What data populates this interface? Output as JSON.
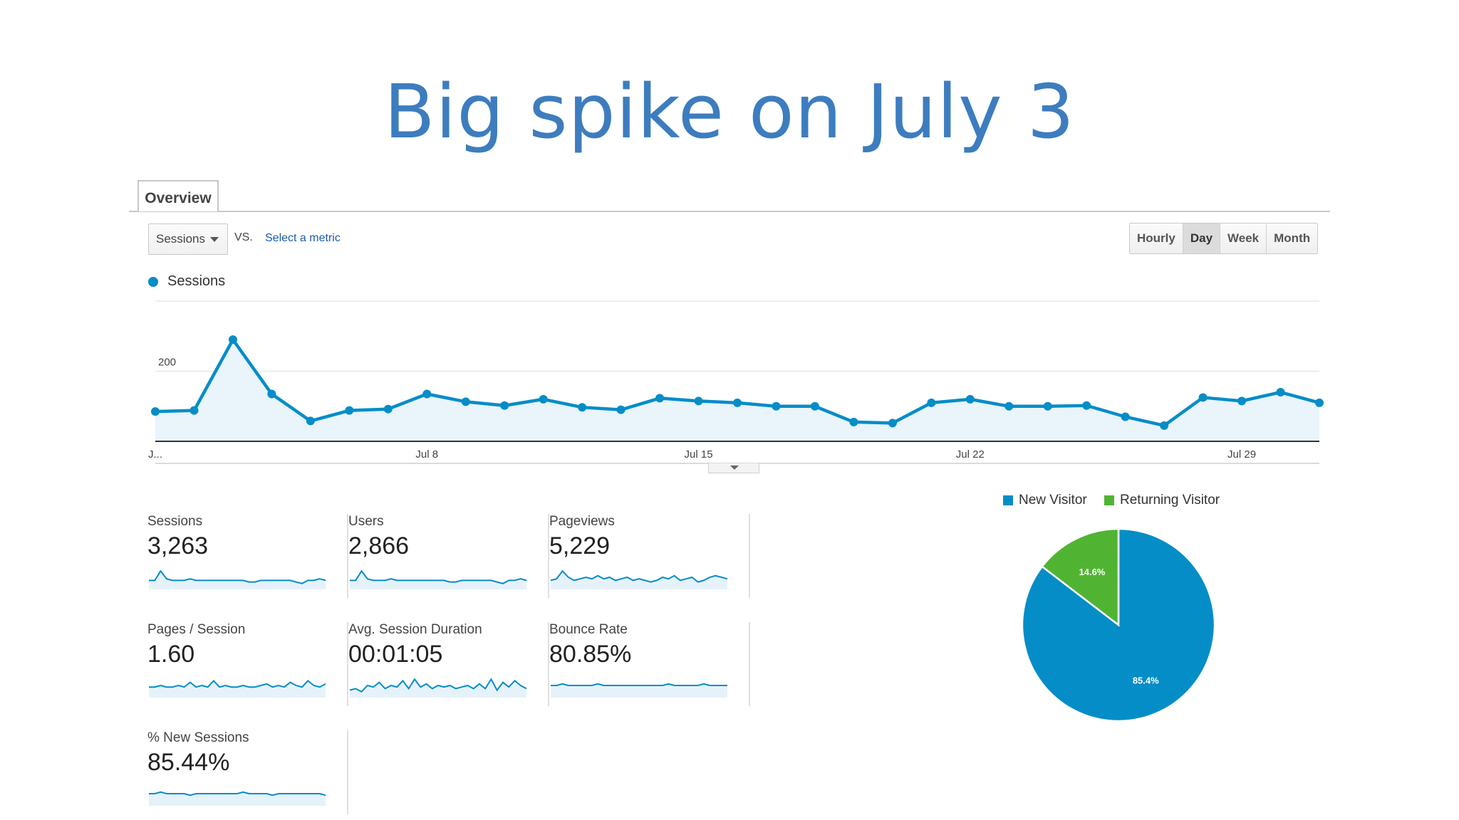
{
  "slide": {
    "title": "Big spike on July 3"
  },
  "tabs": [
    {
      "label": "Overview"
    }
  ],
  "controls": {
    "metric_select": "Sessions",
    "vs_label": "VS.",
    "select_metric_link": "Select a metric",
    "time_buttons": [
      "Hourly",
      "Day",
      "Week",
      "Month"
    ],
    "active_time_button": "Day"
  },
  "colors": {
    "accent": "#058dc7",
    "area_fill": "#e9f4fb",
    "returning": "#50b432",
    "title": "#3d7dbf"
  },
  "chart_data": [
    {
      "type": "line",
      "series": [
        {
          "name": "Sessions",
          "x": [
            "Jul 1",
            "Jul 2",
            "Jul 3",
            "Jul 4",
            "Jul 5",
            "Jul 6",
            "Jul 7",
            "Jul 8",
            "Jul 9",
            "Jul 10",
            "Jul 11",
            "Jul 12",
            "Jul 13",
            "Jul 14",
            "Jul 15",
            "Jul 16",
            "Jul 17",
            "Jul 18",
            "Jul 19",
            "Jul 20",
            "Jul 21",
            "Jul 22",
            "Jul 23",
            "Jul 24",
            "Jul 25",
            "Jul 26",
            "Jul 27",
            "Jul 28",
            "Jul 29",
            "Jul 30",
            "Jul 31"
          ],
          "values": [
            85,
            88,
            290,
            135,
            58,
            88,
            92,
            135,
            113,
            102,
            120,
            97,
            90,
            123,
            115,
            110,
            100,
            100,
            55,
            52,
            110,
            120,
            100,
            100,
            102,
            70,
            45,
            125,
            115,
            140,
            110
          ]
        }
      ],
      "xticks": [
        {
          "index": 0,
          "label": "J..."
        },
        {
          "index": 7,
          "label": "Jul 8"
        },
        {
          "index": 14,
          "label": "Jul 15"
        },
        {
          "index": 21,
          "label": "Jul 22"
        },
        {
          "index": 28,
          "label": "Jul 29"
        }
      ],
      "yticks": [
        200,
        400
      ],
      "ylim": [
        0,
        400
      ],
      "legend": "top-left",
      "grid": true
    },
    {
      "type": "pie",
      "legend": "top",
      "slices": [
        {
          "name": "New Visitor",
          "value": 85.4,
          "label": "85.4%",
          "color": "#058dc7"
        },
        {
          "name": "Returning Visitor",
          "value": 14.6,
          "label": "14.6%",
          "color": "#50b432"
        }
      ]
    }
  ],
  "scorecards": [
    {
      "label": "Sessions",
      "value": "3,263",
      "trend": [
        3,
        3,
        9,
        4,
        3,
        3,
        3,
        4,
        3,
        3,
        3,
        3,
        3,
        3,
        3,
        3,
        3,
        2,
        2,
        3,
        3,
        3,
        3,
        3,
        3,
        2,
        1,
        3,
        3,
        4,
        3
      ]
    },
    {
      "label": "Users",
      "value": "2,866",
      "trend": [
        3,
        3,
        9,
        4,
        3,
        3,
        3,
        4,
        3,
        3,
        3,
        3,
        3,
        3,
        3,
        3,
        3,
        2,
        2,
        3,
        3,
        3,
        3,
        3,
        3,
        2,
        1,
        3,
        3,
        4,
        3
      ]
    },
    {
      "label": "Pageviews",
      "value": "5,229",
      "trend": [
        3,
        4,
        9,
        5,
        3,
        4,
        5,
        4,
        6,
        4,
        5,
        3,
        4,
        5,
        3,
        4,
        3,
        2,
        3,
        5,
        4,
        6,
        3,
        4,
        5,
        2,
        3,
        5,
        6,
        5,
        4
      ]
    },
    {
      "label": "Pages / Session",
      "value": "1.60",
      "trend": [
        4,
        4,
        5,
        4,
        4,
        5,
        4,
        7,
        4,
        5,
        4,
        8,
        4,
        5,
        4,
        4,
        5,
        4,
        4,
        5,
        6,
        4,
        5,
        4,
        7,
        5,
        4,
        8,
        5,
        4,
        6
      ]
    },
    {
      "label": "Avg. Session Duration",
      "value": "00:01:05",
      "trend": [
        2,
        3,
        1,
        5,
        4,
        7,
        3,
        5,
        4,
        8,
        3,
        9,
        4,
        6,
        3,
        5,
        4,
        5,
        3,
        4,
        5,
        3,
        6,
        3,
        9,
        2,
        7,
        4,
        8,
        5,
        3
      ]
    },
    {
      "label": "Bounce Rate",
      "value": "80.85%",
      "trend": [
        5,
        5,
        6,
        5,
        5,
        5,
        5,
        5,
        6,
        5,
        5,
        5,
        5,
        5,
        5,
        5,
        5,
        5,
        5,
        5,
        6,
        5,
        5,
        5,
        5,
        5,
        6,
        5,
        5,
        5,
        5
      ]
    },
    {
      "label": "% New Sessions",
      "value": "85.44%",
      "trend": [
        5,
        5,
        6,
        5,
        5,
        5,
        5,
        4,
        5,
        5,
        5,
        5,
        5,
        5,
        5,
        5,
        6,
        5,
        5,
        5,
        5,
        4,
        5,
        5,
        5,
        5,
        5,
        5,
        5,
        5,
        4
      ]
    }
  ]
}
